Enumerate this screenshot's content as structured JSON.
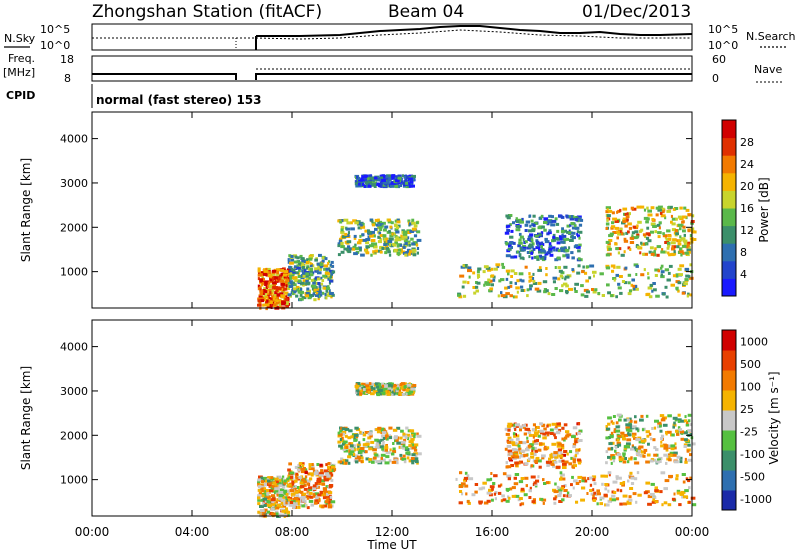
{
  "header": {
    "title": "Zhongshan Station (fitACF)",
    "beam": "Beam 04",
    "date": "01/Dec/2013"
  },
  "left_labels": {
    "nsky": "N.Sky",
    "freq": "Freq.",
    "freq_unit": "[MHz]",
    "cpid": "CPID"
  },
  "right_labels": {
    "nsearch": "N.Search",
    "nave": "Nave"
  },
  "cpid_text": "normal (fast stereo) 153",
  "noise_panel": {
    "left_ticks": [
      "10^5",
      "10^0"
    ],
    "right_ticks": [
      "10^5",
      "10^0"
    ]
  },
  "freq_panel": {
    "left_ticks": [
      "18",
      "8"
    ],
    "right_ticks": [
      "60",
      "0"
    ]
  },
  "chart_data": [
    {
      "type": "heatmap",
      "name": "power",
      "ylabel": "Slant Range [km]",
      "xlabel": "Time UT",
      "x_ticks": [
        "00:00",
        "04:00",
        "08:00",
        "12:00",
        "16:00",
        "20:00",
        "00:00"
      ],
      "y_ticks": [
        "1000",
        "2000",
        "3000",
        "4000"
      ],
      "xlim_hours": [
        0,
        24
      ],
      "ylim_km": [
        180,
        4600
      ],
      "colorbar": {
        "label": "Power [dB]",
        "ticks": [
          "4",
          "8",
          "12",
          "16",
          "20",
          "24",
          "28"
        ],
        "range": [
          0,
          30
        ]
      },
      "echo_regions": [
        {
          "t0": 6.6,
          "t1": 7.8,
          "r0": 200,
          "r1": 1100,
          "level": 0.8
        },
        {
          "t0": 7.8,
          "t1": 9.6,
          "r0": 400,
          "r1": 1400,
          "level": 0.4
        },
        {
          "t0": 9.8,
          "t1": 13.0,
          "r0": 1400,
          "r1": 2200,
          "level": 0.45
        },
        {
          "t0": 10.5,
          "t1": 12.8,
          "r0": 2950,
          "r1": 3200,
          "level": 0.2
        },
        {
          "t0": 14.5,
          "t1": 24.0,
          "r0": 450,
          "r1": 1200,
          "level": 0.5
        },
        {
          "t0": 16.5,
          "t1": 19.5,
          "r0": 1300,
          "r1": 2300,
          "level": 0.25
        },
        {
          "t0": 20.5,
          "t1": 24.0,
          "r0": 1400,
          "r1": 2500,
          "level": 0.6
        }
      ]
    },
    {
      "type": "heatmap",
      "name": "velocity",
      "ylabel": "Slant Range [km]",
      "xlabel": "Time UT",
      "x_ticks": [
        "00:00",
        "04:00",
        "08:00",
        "12:00",
        "16:00",
        "20:00",
        "00:00"
      ],
      "y_ticks": [
        "1000",
        "2000",
        "3000",
        "4000"
      ],
      "xlim_hours": [
        0,
        24
      ],
      "ylim_km": [
        180,
        4600
      ],
      "colorbar": {
        "label": "Velocity [m s⁻¹]",
        "ticks": [
          "1000",
          "500",
          "100",
          "25",
          "-25",
          "-100",
          "-500",
          "-1000"
        ]
      },
      "echo_regions": [
        {
          "t0": 6.6,
          "t1": 7.8,
          "r0": 200,
          "r1": 1100,
          "level": 0.55
        },
        {
          "t0": 7.8,
          "t1": 9.6,
          "r0": 400,
          "r1": 1400,
          "level": 0.65
        },
        {
          "t0": 9.8,
          "t1": 13.0,
          "r0": 1400,
          "r1": 2200,
          "level": 0.5
        },
        {
          "t0": 10.5,
          "t1": 12.8,
          "r0": 2950,
          "r1": 3200,
          "level": 0.5
        },
        {
          "t0": 14.5,
          "t1": 24.0,
          "r0": 450,
          "r1": 1200,
          "level": 0.62
        },
        {
          "t0": 16.5,
          "t1": 19.5,
          "r0": 1300,
          "r1": 2300,
          "level": 0.65
        },
        {
          "t0": 20.5,
          "t1": 24.0,
          "r0": 1400,
          "r1": 2500,
          "level": 0.5
        }
      ]
    }
  ],
  "colors": {
    "power_scale": [
      "#1a1aff",
      "#2244cc",
      "#2e6fb0",
      "#3b8f6a",
      "#5ab84a",
      "#c8d42c",
      "#f5b300",
      "#f27a00",
      "#e03000",
      "#d00000"
    ],
    "velocity_scale": [
      "#1a2aa8",
      "#2e6fb0",
      "#3b8f6a",
      "#55c040",
      "#c8c8c8",
      "#f5b300",
      "#f27a00",
      "#e84000",
      "#d00000"
    ]
  }
}
